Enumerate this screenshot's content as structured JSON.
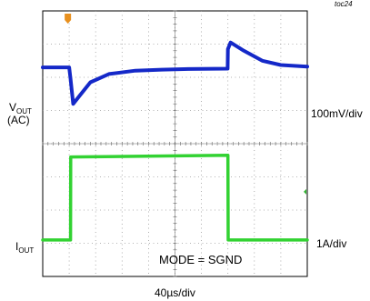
{
  "figure_tag": "toc24",
  "chart_data": {
    "type": "line",
    "x_scale_label": "40µs/div",
    "annotation": "MODE = SGND",
    "grid": true,
    "x_divisions": 10,
    "y_divisions": 8,
    "channels": [
      {
        "name_main": "V",
        "name_sub": "OUT",
        "name_suffix": "(AC)",
        "scale_label": "100mV/div",
        "color": "#1428c8",
        "ground_marker_color": "#e8901e",
        "x_div": [
          0,
          1.0,
          1.05,
          1.15,
          1.4,
          1.8,
          2.5,
          3.5,
          4.5,
          5.5,
          6.99,
          7.0,
          7.1,
          7.6,
          8.3,
          9.0,
          10
        ],
        "y_div": [
          6.3,
          6.3,
          5.95,
          5.2,
          5.45,
          5.85,
          6.1,
          6.2,
          6.23,
          6.25,
          6.26,
          6.85,
          7.05,
          6.8,
          6.5,
          6.37,
          6.32
        ]
      },
      {
        "name_main": "I",
        "name_sub": "OUT",
        "name_suffix": "",
        "scale_label": "1A/div",
        "color": "#32d232",
        "marker_color": "#32b432",
        "x_div": [
          0,
          1.05,
          1.06,
          7.0,
          7.01,
          10
        ],
        "y_div": [
          1.1,
          1.1,
          3.6,
          3.65,
          1.1,
          1.1
        ]
      }
    ]
  }
}
